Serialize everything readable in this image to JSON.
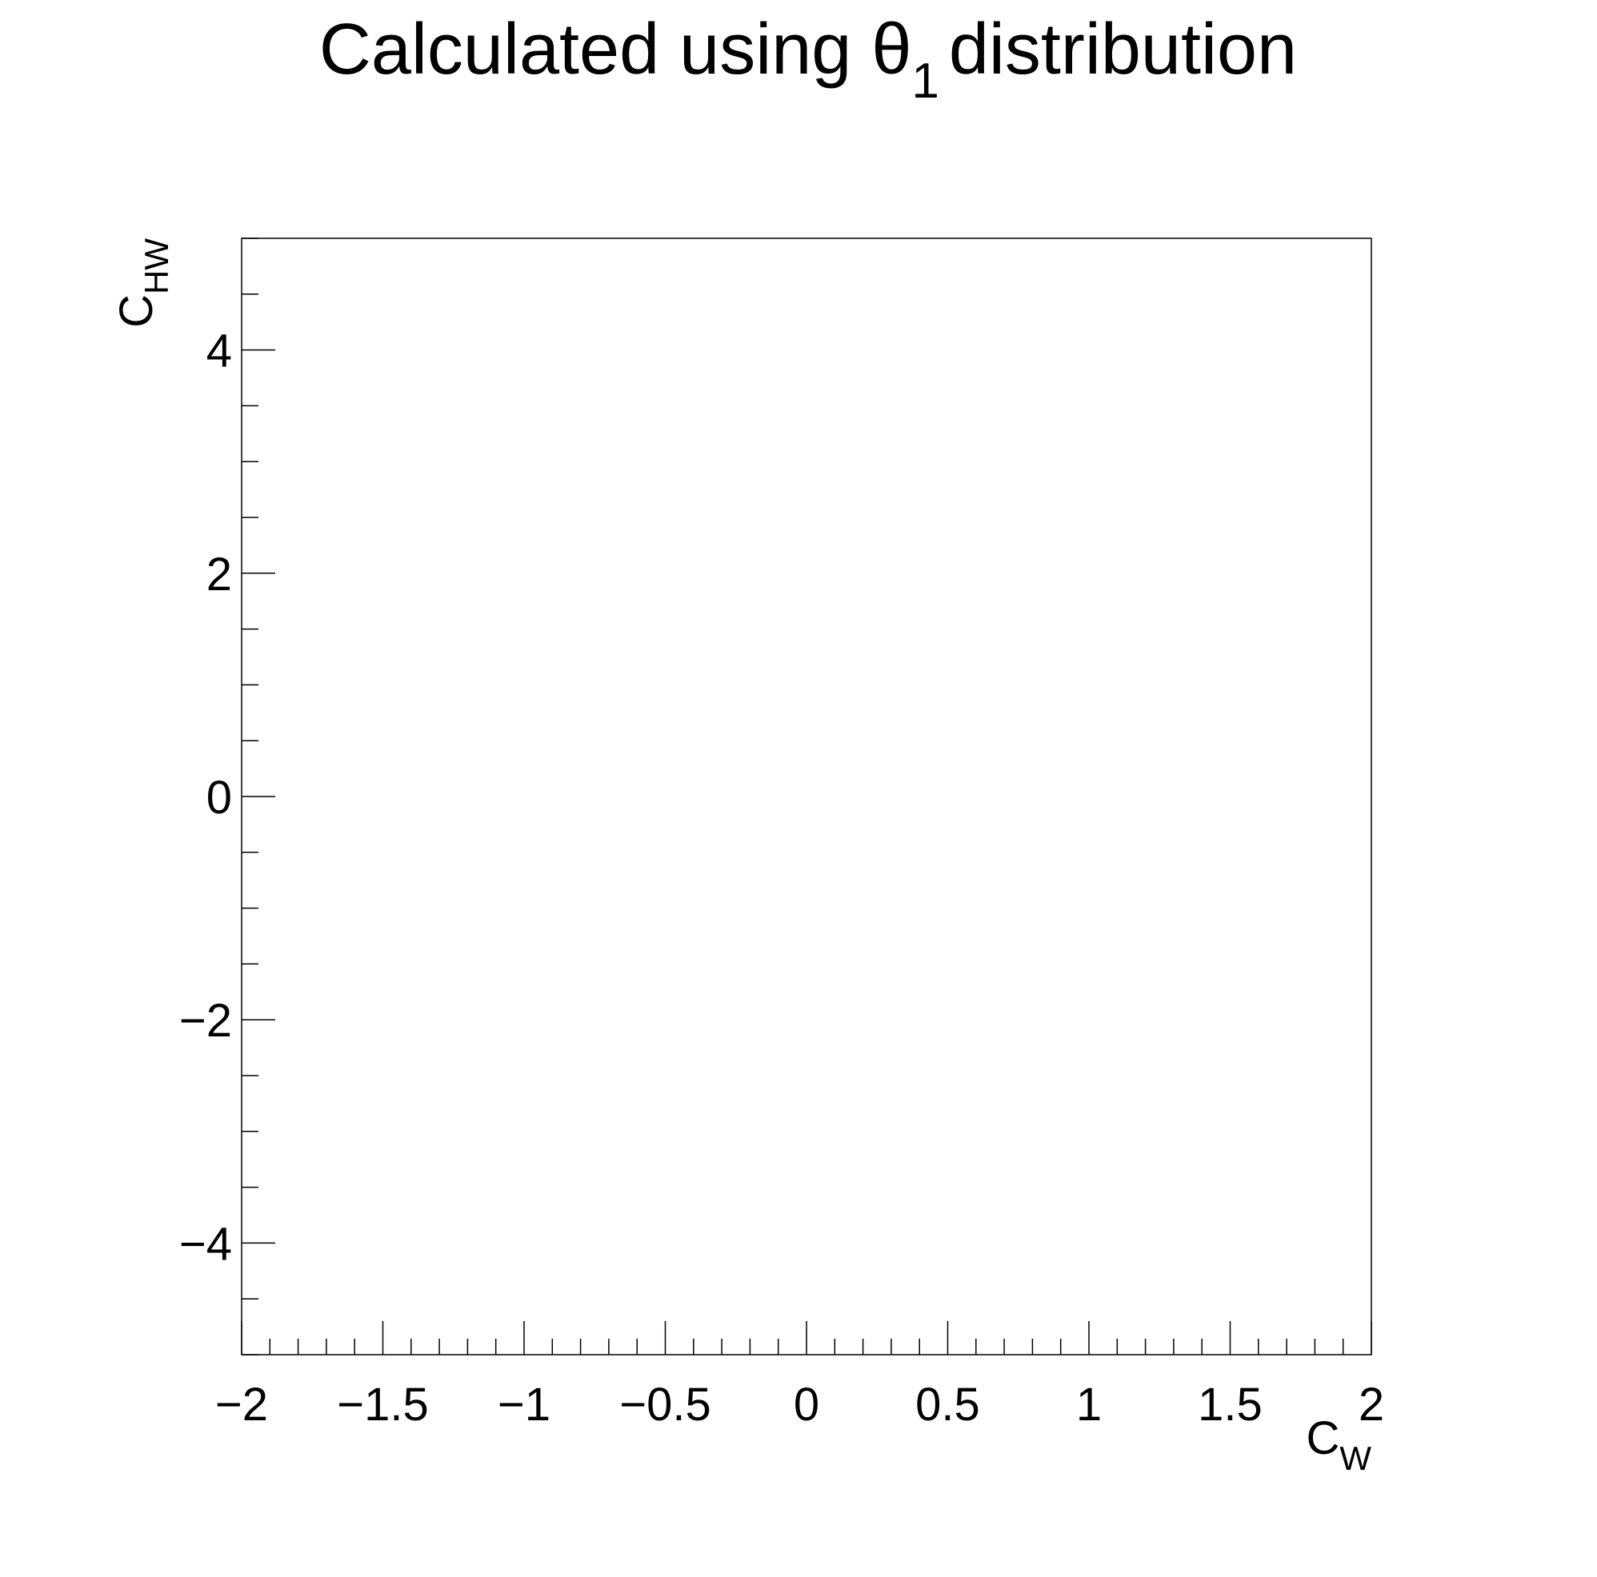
{
  "chart_data": {
    "type": "scatter",
    "title": "Calculated using θ",
    "title_sub": "1",
    "title_suffix": "distribution",
    "xlabel": "C",
    "xlabel_sub": "W",
    "ylabel": "C",
    "ylabel_sub": "HW",
    "xlim": [
      -2,
      2
    ],
    "ylim": [
      -5,
      5
    ],
    "x_ticks": [
      {
        "value": -2,
        "label": "−2"
      },
      {
        "value": -1.5,
        "label": "−1.5"
      },
      {
        "value": -1,
        "label": "−1"
      },
      {
        "value": -0.5,
        "label": "−0.5"
      },
      {
        "value": 0,
        "label": "0"
      },
      {
        "value": 0.5,
        "label": "0.5"
      },
      {
        "value": 1,
        "label": "1"
      },
      {
        "value": 1.5,
        "label": "1.5"
      },
      {
        "value": 2,
        "label": "2"
      }
    ],
    "y_ticks": [
      {
        "value": -4,
        "label": "−4"
      },
      {
        "value": -2,
        "label": "−2"
      },
      {
        "value": 0,
        "label": "0"
      },
      {
        "value": 2,
        "label": "2"
      },
      {
        "value": 4,
        "label": "4"
      }
    ],
    "x_minor_step": 0.1,
    "y_minor_step": 0.5,
    "series": [],
    "grid": false,
    "legend": "none",
    "colors": {
      "axis": "#000000",
      "background": "#ffffff"
    }
  }
}
